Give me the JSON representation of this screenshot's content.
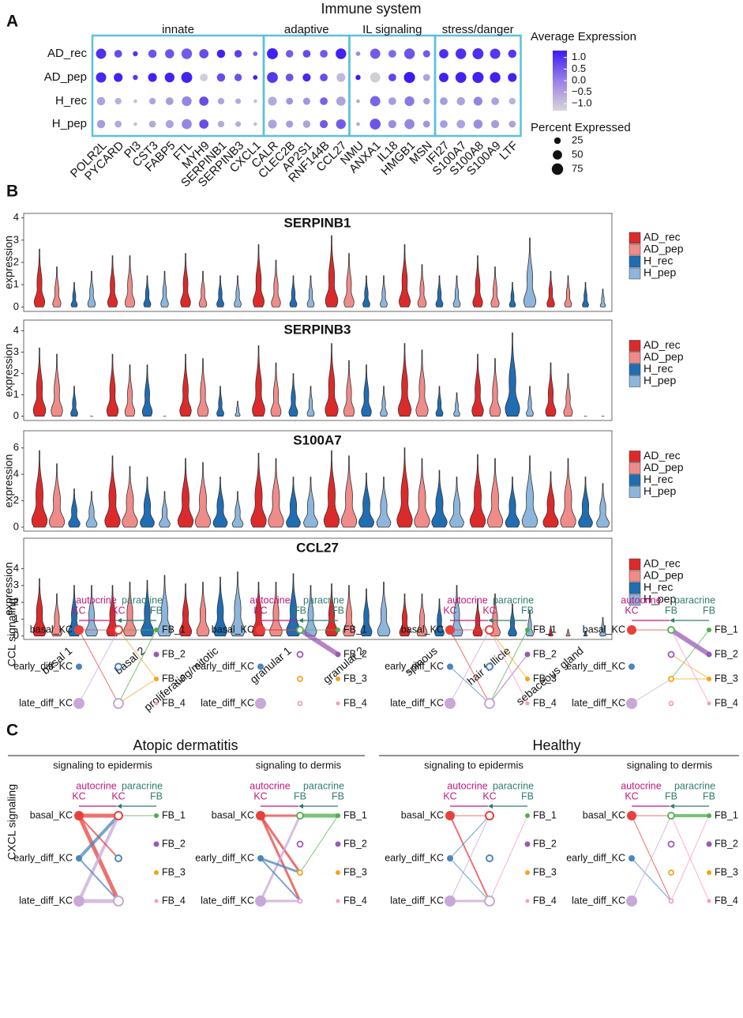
{
  "panel_labels": [
    "A",
    "B",
    "C"
  ],
  "chart_data": [
    {
      "type": "dot",
      "title": "Immune system",
      "groups": [
        {
          "name": "innate",
          "genes": [
            "POLR2L",
            "PYCARD",
            "PI3",
            "CST3",
            "FABP5",
            "FTL",
            "MYH9",
            "SERPINB1",
            "SERPINB3",
            "CXCL1"
          ]
        },
        {
          "name": "adaptive",
          "genes": [
            "CALR",
            "CLEC2B",
            "AP2S1",
            "RNF144B",
            "CCL27"
          ]
        },
        {
          "name": "IL signaling",
          "genes": [
            "NMU",
            "ANXA1",
            "IL18",
            "HMGB1",
            "MSN"
          ]
        },
        {
          "name": "stress/danger",
          "genes": [
            "IFI27",
            "S100A7",
            "S100A8",
            "S100A9",
            "LTF"
          ]
        }
      ],
      "series": [
        {
          "name": "AD_rec",
          "values": [
            1.0,
            0.6,
            0.9,
            0.5,
            0.5,
            0.4,
            0.6,
            1.2,
            0.8,
            0.3,
            1.2,
            0.4,
            0.6,
            0.4,
            1.2,
            -0.3,
            0.4,
            0.2,
            0.5,
            0.4,
            1.0,
            1.0,
            1.0,
            0.9,
            0.9
          ],
          "percent": [
            60,
            35,
            15,
            40,
            48,
            65,
            50,
            40,
            32,
            12,
            70,
            32,
            35,
            35,
            65,
            12,
            60,
            35,
            65,
            30,
            50,
            65,
            70,
            62,
            40
          ]
        },
        {
          "name": "AD_pep",
          "values": [
            1.1,
            1.2,
            0.9,
            1.2,
            1.2,
            1.2,
            -1.2,
            0.6,
            0.5,
            1.3,
            0.9,
            0.5,
            1.1,
            0.6,
            -0.9,
            1.3,
            -1.2,
            0.7,
            1.3,
            -0.6,
            1.2,
            1.2,
            1.2,
            1.2,
            1.2
          ],
          "percent": [
            62,
            45,
            15,
            45,
            55,
            70,
            35,
            40,
            32,
            12,
            68,
            35,
            38,
            35,
            45,
            15,
            60,
            35,
            72,
            28,
            52,
            68,
            72,
            65,
            45
          ]
        },
        {
          "name": "H_rec",
          "values": [
            -0.6,
            -0.8,
            -1.0,
            -0.6,
            -0.5,
            -0.2,
            0.6,
            -0.6,
            -0.7,
            -1.0,
            -0.7,
            -0.4,
            -0.4,
            0.3,
            -0.6,
            -0.7,
            0.3,
            -0.5,
            0.0,
            -0.5,
            -0.5,
            -0.6,
            -0.2,
            -0.6,
            -0.8
          ],
          "percent": [
            40,
            25,
            8,
            25,
            35,
            55,
            50,
            25,
            18,
            8,
            45,
            28,
            30,
            35,
            50,
            8,
            60,
            35,
            55,
            25,
            35,
            40,
            45,
            35,
            25
          ]
        },
        {
          "name": "H_pep",
          "values": [
            -0.5,
            -0.7,
            -1.0,
            -0.7,
            -0.6,
            -0.2,
            0.6,
            -0.7,
            -0.7,
            -1.0,
            -0.6,
            -0.5,
            -0.6,
            0.4,
            0.4,
            -0.7,
            0.5,
            -0.3,
            -0.2,
            -0.4,
            -0.5,
            -0.6,
            -0.3,
            -0.5,
            -0.6
          ],
          "percent": [
            40,
            28,
            8,
            28,
            38,
            58,
            50,
            25,
            18,
            8,
            45,
            30,
            32,
            38,
            55,
            8,
            68,
            38,
            58,
            28,
            35,
            42,
            48,
            38,
            28
          ]
        }
      ],
      "color_label": "Average Expression",
      "color_lim": [
        -1.3,
        1.3
      ],
      "colors": [
        "#d6d6d6",
        "#3b1cf2"
      ],
      "color_ticks": [
        {
          "value": 1,
          "label": "1.0"
        },
        {
          "value": 0.5,
          "label": "0.5"
        },
        {
          "value": 0,
          "label": "0.0"
        },
        {
          "value": -0.5,
          "label": "−0.5"
        },
        {
          "value": -1,
          "label": "−1.0"
        }
      ],
      "size_label": "Percent Expressed",
      "size_ticks": [
        25,
        50,
        75
      ]
    },
    {
      "type": "violin",
      "title": "SERPINB1",
      "ylabel": "expression",
      "ylim": [
        -0.2,
        4.2
      ],
      "yticks": [
        0,
        1,
        2,
        3,
        4
      ],
      "series": [
        {
          "name": "AD_rec",
          "color": "#dc2a2a",
          "values": [
            2.6,
            2.3,
            2.4,
            2.8,
            3.2,
            2.8,
            2.3,
            1.6
          ]
        },
        {
          "name": "AD_pep",
          "color": "#ef8c8a",
          "values": [
            1.8,
            2.3,
            1.6,
            2.1,
            2.4,
            1.9,
            1.8,
            1.4
          ]
        },
        {
          "name": "H_rec",
          "color": "#1f6db3",
          "values": [
            1.1,
            1.4,
            1.4,
            1.4,
            1.4,
            1.4,
            1.1,
            1.1
          ]
        },
        {
          "name": "H_pep",
          "color": "#8db6dc",
          "values": [
            1.6,
            1.6,
            1.4,
            1.4,
            1.4,
            1.4,
            3.1,
            0.8
          ]
        }
      ]
    },
    {
      "type": "violin",
      "title": "SERPINB3",
      "ylabel": "expression",
      "ylim": [
        -0.2,
        4.5
      ],
      "yticks": [
        0,
        1,
        2,
        3,
        4
      ],
      "series": [
        {
          "name": "AD_rec",
          "color": "#dc2a2a",
          "values": [
            3.2,
            2.9,
            2.9,
            3.3,
            3.4,
            3.4,
            2.9,
            2.5
          ]
        },
        {
          "name": "AD_pep",
          "color": "#ef8c8a",
          "values": [
            2.9,
            2.4,
            2.7,
            2.5,
            2.6,
            3.1,
            2.7,
            2.0
          ]
        },
        {
          "name": "H_rec",
          "color": "#1f6db3",
          "values": [
            1.4,
            2.4,
            1.4,
            2.0,
            2.4,
            1.4,
            3.9,
            0
          ]
        },
        {
          "name": "H_pep",
          "color": "#8db6dc",
          "values": [
            0,
            0,
            0.7,
            1.4,
            1.4,
            1.1,
            1.4,
            0
          ]
        }
      ]
    },
    {
      "type": "violin",
      "title": "S100A7",
      "ylabel": "expression",
      "ylim": [
        -0.3,
        7.3
      ],
      "yticks": [
        0,
        2,
        4,
        6
      ],
      "series": [
        {
          "name": "AD_rec",
          "color": "#dc2a2a",
          "values": [
            5.8,
            5.4,
            5.2,
            5.6,
            5.8,
            6.0,
            5.5,
            4.2
          ]
        },
        {
          "name": "AD_pep",
          "color": "#ef8c8a",
          "values": [
            4.8,
            4.6,
            4.9,
            5.2,
            5.4,
            5.2,
            5.2,
            5.2
          ]
        },
        {
          "name": "H_rec",
          "color": "#1f6db3",
          "values": [
            2.9,
            3.8,
            3.8,
            3.8,
            4.1,
            4.3,
            3.8,
            3.8
          ]
        },
        {
          "name": "H_pep",
          "color": "#8db6dc",
          "values": [
            2.7,
            2.7,
            2.7,
            3.8,
            3.8,
            3.8,
            5.4,
            3.3
          ]
        }
      ]
    },
    {
      "type": "violin",
      "title": "CCL27",
      "ylabel": "expression",
      "ylim": [
        -0.2,
        5.8
      ],
      "yticks": [
        0,
        1,
        2,
        3,
        4
      ],
      "categories": [
        "basal 1",
        "basal 2",
        "proliferating/mitotic",
        "granular 1",
        "granular 2",
        "spinous",
        "hair follicle",
        "sebaceous gland"
      ],
      "series": [
        {
          "name": "AD_rec",
          "color": "#dc2a2a",
          "values": [
            3.4,
            3.0,
            3.1,
            3.2,
            3.1,
            2.5,
            2.2,
            0.6
          ]
        },
        {
          "name": "AD_pep",
          "color": "#ef8c8a",
          "values": [
            2.5,
            3.2,
            3.2,
            3.2,
            3.0,
            2.5,
            2.5,
            0.4
          ]
        },
        {
          "name": "H_rec",
          "color": "#1f6db3",
          "values": [
            3.0,
            3.3,
            3.5,
            3.7,
            2.8,
            2.2,
            1.9,
            0.3
          ]
        },
        {
          "name": "H_pep",
          "color": "#8db6dc",
          "values": [
            3.0,
            3.6,
            3.8,
            3.0,
            3.2,
            3.0,
            1.5,
            1.1
          ]
        }
      ]
    }
  ],
  "panel_c": {
    "titles": [
      "Atopic dermatitis",
      "Healthy"
    ],
    "subtitles": [
      "signaling to epidermis",
      "signaling to dermis"
    ],
    "rows": [
      "CCL signaling",
      "CXCL signaling"
    ],
    "autocrine": "autocrine",
    "paracrine": "paracrine",
    "KC": "KC",
    "FB": "FB",
    "kc_nodes": [
      "basal_KC",
      "early_diff_KC",
      "late_diff_KC"
    ],
    "fb_nodes": [
      "FB_1",
      "FB_2",
      "FB_3",
      "FB_4"
    ]
  }
}
